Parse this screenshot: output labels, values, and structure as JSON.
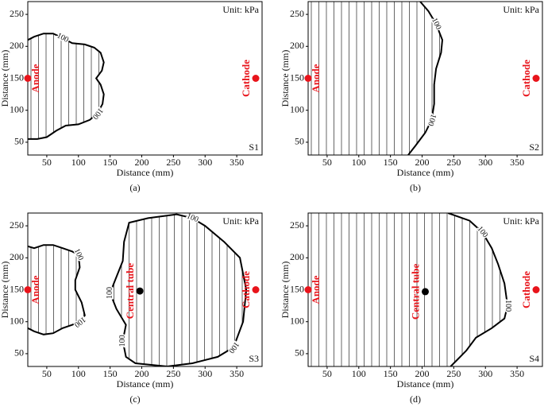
{
  "chart_data": [
    {
      "type": "contour",
      "caption": "(a)",
      "unit_label": "Unit: kPa",
      "sample_label": "S1",
      "x_label": "Distance (mm)",
      "y_label": "Distance (mm)",
      "xlim": [
        20,
        390
      ],
      "ylim": [
        30,
        270
      ],
      "xticks": [
        50,
        100,
        150,
        200,
        250,
        300,
        350
      ],
      "yticks": [
        50,
        100,
        150,
        200,
        250
      ],
      "contours": [
        {
          "level": 100,
          "closed": false,
          "x": [
            20,
            30,
            45,
            60,
            75,
            90,
            110,
            125,
            135,
            140,
            137,
            128,
            135,
            140,
            138,
            130,
            118,
            100,
            80,
            65,
            50,
            35,
            20
          ],
          "y": [
            210,
            215,
            220,
            220,
            213,
            205,
            203,
            198,
            190,
            175,
            162,
            150,
            140,
            125,
            110,
            95,
            85,
            78,
            76,
            68,
            58,
            55,
            55
          ]
        }
      ],
      "markers": [
        {
          "name": "Anode",
          "x": 20,
          "y": 150,
          "color": "#e8141b"
        },
        {
          "name": "Cathode",
          "x": 380,
          "y": 150,
          "color": "#e8141b"
        }
      ]
    },
    {
      "type": "contour",
      "caption": "(b)",
      "unit_label": "Unit: kPa",
      "sample_label": "S2",
      "x_label": "Distance (mm)",
      "y_label": "Distance (mm)",
      "xlim": [
        20,
        390
      ],
      "ylim": [
        30,
        270
      ],
      "xticks": [
        50,
        100,
        150,
        200,
        250,
        300,
        350
      ],
      "yticks": [
        50,
        100,
        150,
        200,
        250
      ],
      "contours": [
        {
          "level": 100,
          "closed": false,
          "x": [
            197,
            210,
            222,
            232,
            230,
            222,
            219,
            219,
            215,
            205,
            190,
            178
          ],
          "y": [
            270,
            255,
            235,
            210,
            190,
            165,
            140,
            110,
            85,
            65,
            45,
            30
          ]
        }
      ],
      "markers": [
        {
          "name": "Anode",
          "x": 20,
          "y": 150,
          "color": "#e8141b"
        },
        {
          "name": "Cathode",
          "x": 380,
          "y": 150,
          "color": "#e8141b"
        }
      ]
    },
    {
      "type": "contour",
      "caption": "(c)",
      "unit_label": "Unit: kPa",
      "sample_label": "S3",
      "x_label": "Distance (mm)",
      "y_label": "Distance (mm)",
      "xlim": [
        20,
        390
      ],
      "ylim": [
        30,
        270
      ],
      "xticks": [
        50,
        100,
        150,
        200,
        250,
        300,
        350
      ],
      "yticks": [
        50,
        100,
        150,
        200,
        250
      ],
      "contours": [
        {
          "level": 100,
          "closed": false,
          "x": [
            20,
            30,
            45,
            60,
            75,
            90,
            100,
            102,
            95,
            95,
            105,
            110,
            102,
            90,
            75,
            60,
            45,
            30,
            20
          ],
          "y": [
            218,
            215,
            220,
            220,
            215,
            210,
            205,
            185,
            165,
            150,
            130,
            110,
            100,
            95,
            90,
            82,
            80,
            85,
            90
          ]
        },
        {
          "level": 100,
          "closed": true,
          "x": [
            180,
            210,
            255,
            280,
            300,
            330,
            355,
            365,
            360,
            345,
            320,
            280,
            240,
            190,
            175,
            170,
            175,
            160,
            150,
            160,
            170,
            172
          ],
          "y": [
            255,
            262,
            268,
            262,
            250,
            225,
            200,
            150,
            100,
            60,
            45,
            35,
            30,
            35,
            45,
            70,
            95,
            120,
            145,
            170,
            195,
            225
          ]
        }
      ],
      "markers": [
        {
          "name": "Anode",
          "x": 20,
          "y": 150,
          "color": "#e8141b"
        },
        {
          "name": "Cathode",
          "x": 380,
          "y": 150,
          "color": "#e8141b"
        },
        {
          "name": "Central tube",
          "x": 197,
          "y": 148,
          "color": "#000000"
        }
      ]
    },
    {
      "type": "contour",
      "caption": "(d)",
      "unit_label": "Unit: kPa",
      "sample_label": "S4",
      "x_label": "Distance (mm)",
      "y_label": "Distance (mm)",
      "xlim": [
        20,
        390
      ],
      "ylim": [
        30,
        270
      ],
      "xticks": [
        50,
        100,
        150,
        200,
        250,
        300,
        350
      ],
      "yticks": [
        50,
        100,
        150,
        200,
        250
      ],
      "contours": [
        {
          "level": 100,
          "closed": false,
          "x": [
            241,
            275,
            295,
            310,
            320,
            330,
            335,
            330,
            310,
            285,
            270,
            255,
            245
          ],
          "y": [
            270,
            258,
            240,
            215,
            190,
            160,
            125,
            105,
            90,
            75,
            55,
            40,
            30
          ]
        }
      ],
      "markers": [
        {
          "name": "Anode",
          "x": 20,
          "y": 150,
          "color": "#e8141b"
        },
        {
          "name": "Cathode",
          "x": 380,
          "y": 150,
          "color": "#e8141b"
        },
        {
          "name": "Central tube",
          "x": 205,
          "y": 147,
          "color": "#000000"
        }
      ]
    }
  ]
}
